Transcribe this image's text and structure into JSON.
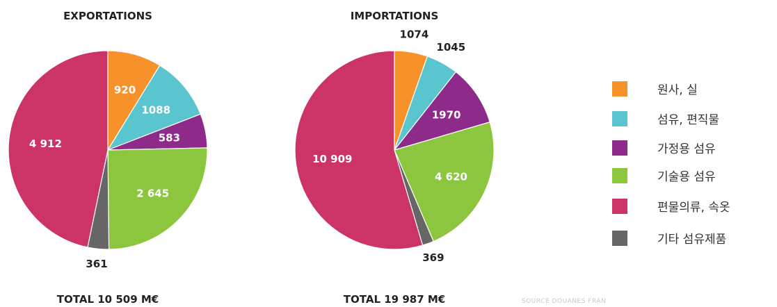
{
  "chart_data": [
    {
      "type": "pie",
      "title": "EXPORTATIONS",
      "total_label": "TOTAL 10 509 M€",
      "slices": [
        {
          "category": "원사, 실",
          "value": 920,
          "label": "920"
        },
        {
          "category": "섬유, 편직물",
          "value": 1088,
          "label": "1088"
        },
        {
          "category": "가정용 섬유",
          "value": 583,
          "label": "583"
        },
        {
          "category": "기술용 섬유",
          "value": 2645,
          "label": "2 645"
        },
        {
          "category": "기타 섬유제품",
          "value": 361,
          "label": "361"
        },
        {
          "category": "편물의류, 속옷",
          "value": 4912,
          "label": "4 912"
        }
      ]
    },
    {
      "type": "pie",
      "title": "IMPORTATIONS",
      "total_label": "TOTAL 19 987 M€",
      "slices": [
        {
          "category": "원사, 실",
          "value": 1074,
          "label": "1074"
        },
        {
          "category": "섬유, 편직물",
          "value": 1045,
          "label": "1045"
        },
        {
          "category": "가정용 섬유",
          "value": 1970,
          "label": "1970"
        },
        {
          "category": "기술용 섬유",
          "value": 4620,
          "label": "4 620"
        },
        {
          "category": "기타 섬유제품",
          "value": 369,
          "label": "369"
        },
        {
          "category": "편물의류, 속옷",
          "value": 10909,
          "label": "10 909"
        }
      ]
    }
  ],
  "legend": [
    {
      "label": "원사, 실",
      "color": "#f7922a"
    },
    {
      "label": "섬유, 편직물",
      "color": "#5bc5cf"
    },
    {
      "label": "가정용 섬유",
      "color": "#8e2a8a"
    },
    {
      "label": "기술용 섬유",
      "color": "#8cc63e"
    },
    {
      "label": "편물의류, 속옷",
      "color": "#cc3366"
    },
    {
      "label": "기타 섬유제품",
      "color": "#666666"
    }
  ],
  "source": "SOURCE DOUANES FRAN"
}
